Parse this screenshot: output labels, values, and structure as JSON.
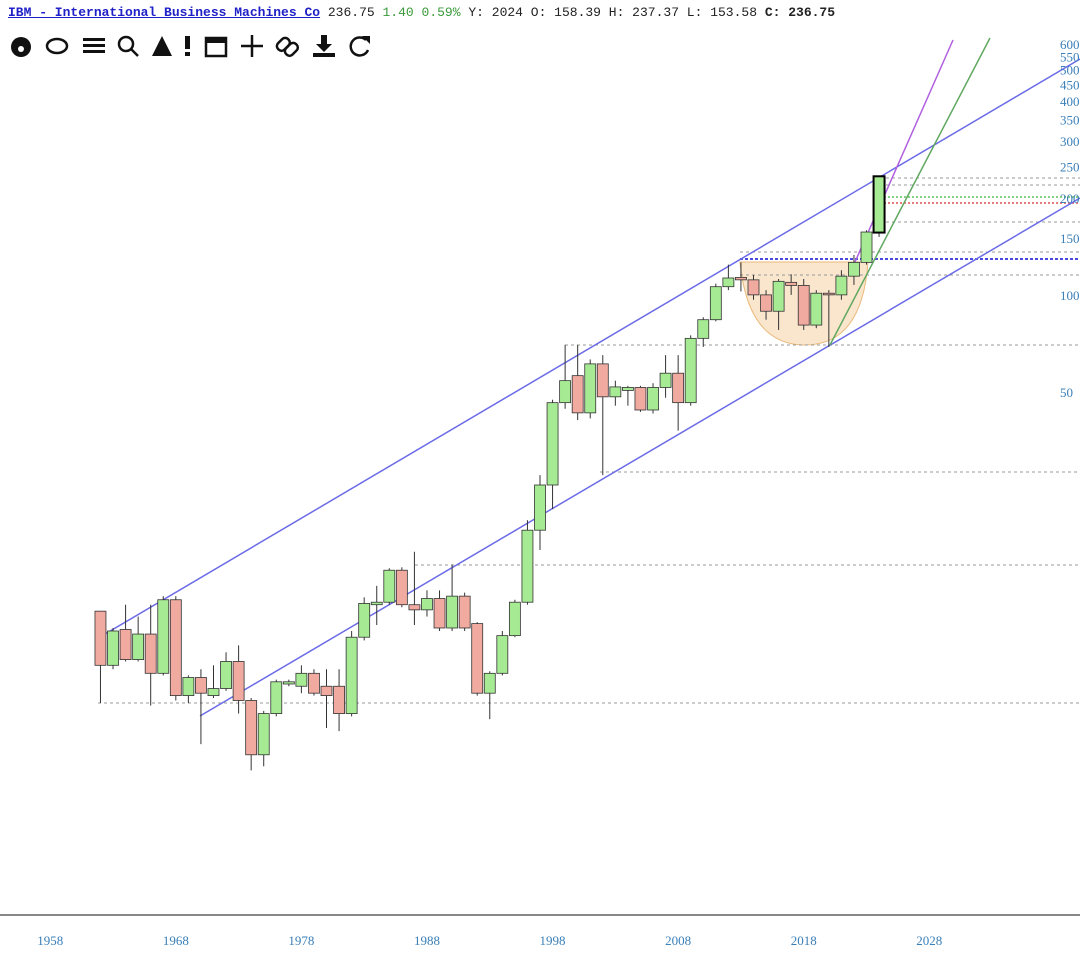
{
  "header": {
    "title": "IBM - International Business Machines Co",
    "last": "236.75",
    "change": "1.40",
    "change_pct": "0.59%",
    "ohl": "Y: 2024 O: 158.39 H: 237.37 L: 153.58",
    "close_label": "C: 236.75"
  },
  "chart_data": {
    "type": "candlestick",
    "log_scale": true,
    "up_color": "#a6eb94",
    "down_color": "#f0aaa0",
    "x": [
      1962,
      1963,
      1964,
      1965,
      1966,
      1967,
      1968,
      1969,
      1970,
      1971,
      1972,
      1973,
      1974,
      1975,
      1976,
      1977,
      1978,
      1979,
      1980,
      1981,
      1982,
      1983,
      1984,
      1985,
      1986,
      1987,
      1988,
      1989,
      1990,
      1991,
      1992,
      1993,
      1994,
      1995,
      1996,
      1997,
      1998,
      1999,
      2000,
      2001,
      2002,
      2003,
      2004,
      2005,
      2006,
      2007,
      2008,
      2009,
      2010,
      2011,
      2012,
      2013,
      2014,
      2015,
      2016,
      2017,
      2018,
      2019,
      2020,
      2021,
      2022,
      2023,
      2024
    ],
    "open": [
      10.6,
      7.2,
      9.3,
      7.5,
      9.0,
      6.8,
      11.5,
      5.8,
      6.6,
      5.8,
      6.1,
      7.4,
      5.6,
      3.8,
      5.1,
      6.3,
      6.2,
      6.8,
      6.2,
      6.2,
      5.1,
      8.8,
      11.1,
      11.3,
      14.2,
      11.1,
      10.7,
      11.6,
      9.4,
      11.8,
      9.7,
      5.9,
      6.8,
      8.9,
      11.3,
      18.9,
      26.1,
      47,
      57,
      43.7,
      62,
      49,
      51.3,
      52.4,
      44.6,
      52.4,
      58,
      47,
      74.4,
      85,
      107.6,
      115,
      113,
      101.5,
      90.3,
      111,
      108.6,
      81.8,
      102.7,
      101.5,
      116,
      128,
      158.39
    ],
    "high": [
      10.6,
      9.4,
      11.1,
      10.2,
      11.1,
      11.8,
      11.8,
      6.7,
      7.0,
      7.2,
      7.9,
      8.3,
      5.7,
      5.2,
      6.5,
      6.5,
      7.2,
      7.0,
      7.0,
      7.0,
      9.2,
      11.7,
      12.7,
      14.4,
      14.5,
      16.2,
      12.3,
      12.3,
      14.8,
      12.1,
      9.8,
      6.9,
      9.2,
      11.5,
      20.3,
      28,
      48,
      71,
      71,
      64,
      66,
      55,
      53,
      53,
      54,
      66,
      66,
      76,
      86.5,
      110,
      126,
      128,
      117,
      105,
      113.7,
      117.6,
      113.7,
      105,
      105,
      121,
      135,
      161,
      237.37
    ],
    "low": [
      5.5,
      7.0,
      7.4,
      7.4,
      5.4,
      6.7,
      5.6,
      5.5,
      4.1,
      5.7,
      6.0,
      5.1,
      3.4,
      3.5,
      5.0,
      6.2,
      5.9,
      5.8,
      4.6,
      4.5,
      5.0,
      8.6,
      9.6,
      11.1,
      10.9,
      9.6,
      10.2,
      9.2,
      9.2,
      9.2,
      5.8,
      4.9,
      6.7,
      8.8,
      11.1,
      16.4,
      22,
      45,
      41.5,
      42,
      28,
      46,
      46,
      44,
      43.5,
      48.7,
      38.5,
      46,
      70,
      84,
      105,
      104,
      98,
      85,
      79,
      101.5,
      79,
      80,
      70,
      98,
      109,
      126,
      153.58
    ],
    "close": [
      7.2,
      9.2,
      7.5,
      9.0,
      6.8,
      11.5,
      5.8,
      6.6,
      5.9,
      6.1,
      7.4,
      5.6,
      3.8,
      5.1,
      6.4,
      6.4,
      6.8,
      5.9,
      5.8,
      5.1,
      8.8,
      11.2,
      11.3,
      14.2,
      11.1,
      10.7,
      11.6,
      9.4,
      11.8,
      9.4,
      5.9,
      6.8,
      8.9,
      11.3,
      18.9,
      26.1,
      47,
      55,
      43.7,
      62,
      49,
      52.6,
      52.4,
      44.6,
      52.4,
      58,
      47,
      74.4,
      85,
      107.6,
      114.5,
      113,
      101.5,
      90.3,
      111.8,
      108.6,
      81.8,
      102.7,
      101.5,
      116,
      128,
      159,
      236.75
    ],
    "xlim": [
      1954,
      2040
    ],
    "xticks": [
      1958,
      1968,
      1978,
      1988,
      1998,
      2008,
      2018,
      2028
    ],
    "ylim": [
      1.21,
      834
    ],
    "yticks": [
      600,
      550,
      500,
      450,
      400,
      350,
      300,
      250,
      200,
      150,
      100,
      50
    ]
  }
}
